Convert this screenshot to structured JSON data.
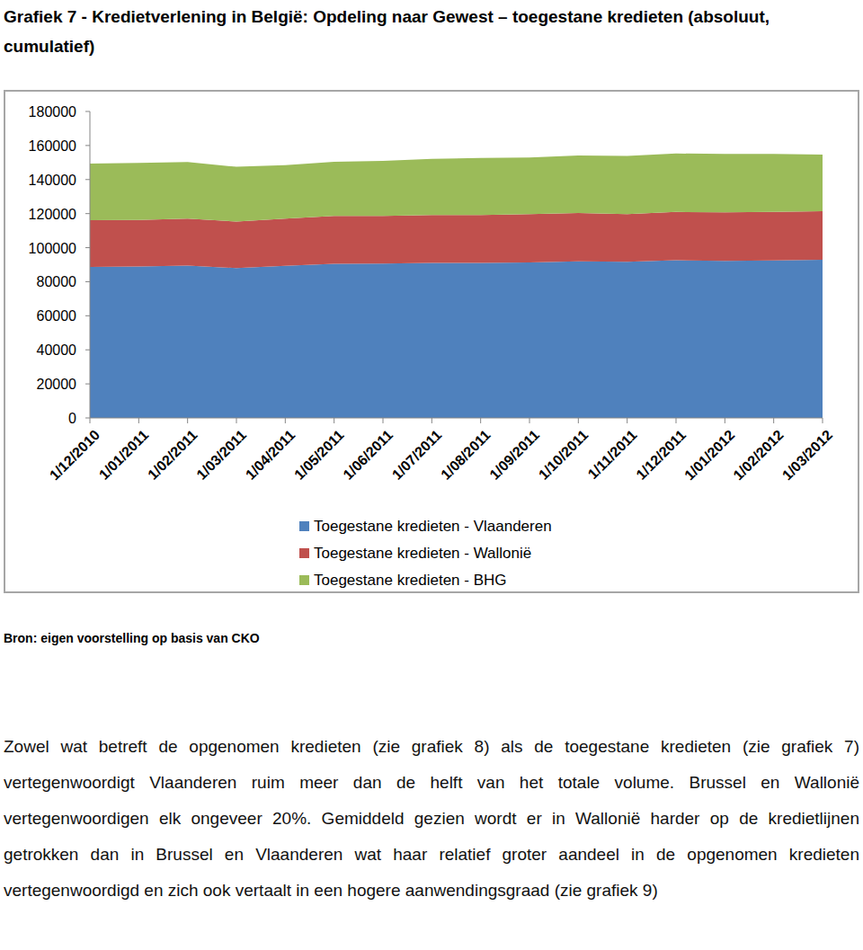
{
  "chart_data": {
    "type": "area",
    "stacked": true,
    "title": "Grafiek 7 - Kredietverlening in België: Opdeling naar Gewest – toegestane kredieten (absoluut, cumulatief)",
    "categories": [
      "1/12/2010",
      "1/01/2011",
      "1/02/2011",
      "1/03/2011",
      "1/04/2011",
      "1/05/2011",
      "1/06/2011",
      "1/07/2011",
      "1/08/2011",
      "1/09/2011",
      "1/10/2011",
      "1/11/2011",
      "1/12/2011",
      "1/01/2012",
      "1/02/2012",
      "1/03/2012"
    ],
    "series": [
      {
        "name": "Toegestane kredieten - Vlaanderen",
        "color": "#4f81bd",
        "values": [
          88700,
          89000,
          89500,
          88000,
          89300,
          90500,
          90700,
          91000,
          91000,
          91300,
          92000,
          91700,
          92600,
          92300,
          92500,
          92900
        ]
      },
      {
        "name": "Toegestane kredieten - Wallonië",
        "color": "#c0504d",
        "values": [
          27400,
          27300,
          27500,
          27400,
          27700,
          28200,
          28000,
          28200,
          28200,
          28400,
          28300,
          28000,
          28400,
          28400,
          28500,
          28500
        ]
      },
      {
        "name": "Toegestane kredieten - BHG",
        "color": "#9bbb59",
        "values": [
          33300,
          33500,
          33300,
          32100,
          31500,
          31800,
          32300,
          33000,
          33500,
          33300,
          33900,
          34200,
          34300,
          34400,
          34000,
          33300
        ]
      }
    ],
    "ylim": [
      0,
      180000
    ],
    "yticks": [
      0,
      20000,
      40000,
      60000,
      80000,
      100000,
      120000,
      140000,
      160000,
      180000
    ],
    "grid": false,
    "legend": "bottom"
  },
  "source": "Bron: eigen voorstelling op basis van CKO",
  "text": "Zowel wat betreft de opgenomen kredieten (zie grafiek 8) als de toegestane kredieten (zie grafiek 7) vertegenwoordigt Vlaanderen ruim meer dan de helft van het totale volume. Brussel en Wallonië vertegenwoordigen elk ongeveer 20%. Gemiddeld gezien wordt er in Wallonië harder op de kredietlijnen getrokken dan in Brussel en Vlaanderen wat haar relatief groter aandeel in de opgenomen kredieten vertegenwoordigd en zich ook vertaalt in een hogere aanwendingsgraad (zie grafiek 9)"
}
